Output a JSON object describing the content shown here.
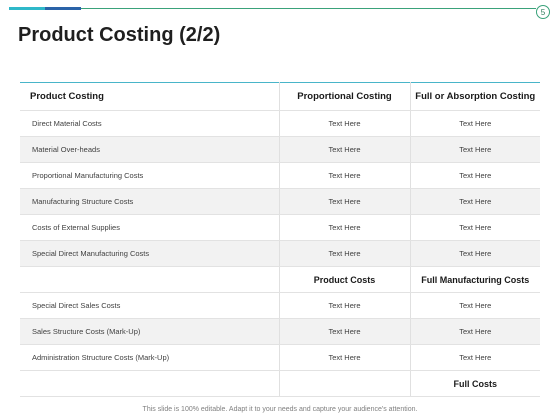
{
  "slide": {
    "page_number": "5",
    "title": "Product Costing (2/2)",
    "footer_note": "This slide is 100% editable. Adapt it to your needs and capture your audience's attention."
  },
  "table": {
    "headers": [
      "Product Costing",
      "Proportional Costing",
      "Full or Absorption Costing"
    ],
    "group1_rows": [
      {
        "label": "Direct Material Costs",
        "proportional": "Text Here",
        "full": "Text Here"
      },
      {
        "label": "Material Over-heads",
        "proportional": "Text Here",
        "full": "Text Here"
      },
      {
        "label": "Proportional Manufacturing Costs",
        "proportional": "Text Here",
        "full": "Text Here"
      },
      {
        "label": "Manufacturing Structure Costs",
        "proportional": "Text Here",
        "full": "Text Here"
      },
      {
        "label": "Costs of External Supplies",
        "proportional": "Text Here",
        "full": "Text Here"
      },
      {
        "label": "Special Direct Manufacturing Costs",
        "proportional": "Text Here",
        "full": "Text Here"
      }
    ],
    "subtotal": {
      "proportional": "Product Costs",
      "full": "Full Manufacturing Costs"
    },
    "group2_rows": [
      {
        "label": "Special Direct Sales Costs",
        "proportional": "Text Here",
        "full": "Text Here"
      },
      {
        "label": "Sales Structure Costs (Mark-Up)",
        "proportional": "Text Here",
        "full": "Text Here"
      },
      {
        "label": "Administration Structure Costs (Mark-Up)",
        "proportional": "Text Here",
        "full": "Text Here"
      }
    ],
    "total": {
      "full": "Full Costs"
    }
  }
}
